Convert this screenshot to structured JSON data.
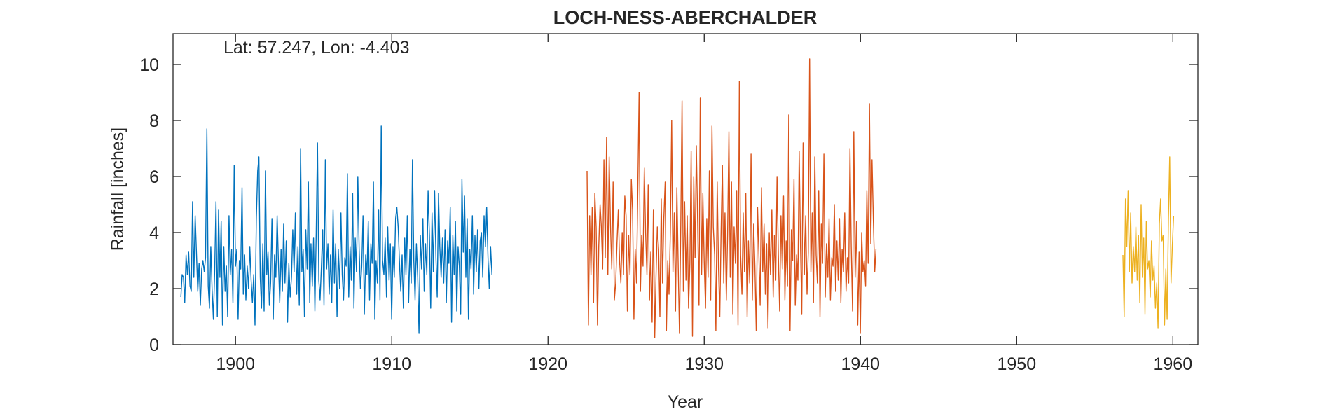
{
  "chart_data": {
    "type": "line",
    "title": "LOCH-NESS-ABERCHALDER",
    "annotation": "Lat: 57.247, Lon: -4.403",
    "xlabel": "Year",
    "ylabel": "Rainfall [inches]",
    "xlim": [
      1896,
      1961.6
    ],
    "ylim": [
      0,
      11.1
    ],
    "xticks": [
      1900,
      1910,
      1920,
      1930,
      1940,
      1950,
      1960
    ],
    "yticks": [
      0,
      2,
      4,
      6,
      8,
      10
    ],
    "grid": false,
    "series": [
      {
        "color": "#0072BD",
        "x_start": 1896.5,
        "x_step": 0.0833,
        "values": [
          1.7,
          2.5,
          2.4,
          1.5,
          3.2,
          2.5,
          3.3,
          2.1,
          1.9,
          5.1,
          2.4,
          4.6,
          3.3,
          1.9,
          2.9,
          1.4,
          2.7,
          3.0,
          2.6,
          3.1,
          7.7,
          2.1,
          1.3,
          3.5,
          2.0,
          0.9,
          2.7,
          5.1,
          1.0,
          4.8,
          2.4,
          4.4,
          0.7,
          3.5,
          1.9,
          2.8,
          1.0,
          4.6,
          2.5,
          3.4,
          1.5,
          6.4,
          2.8,
          3.4,
          0.9,
          3.0,
          2.7,
          5.6,
          1.8,
          3.2,
          1.6,
          2.8,
          2.0,
          3.5,
          2.3,
          1.5,
          2.5,
          0.7,
          4.5,
          6.2,
          6.7,
          2.4,
          1.3,
          3.6,
          1.2,
          6.2,
          2.5,
          3.3,
          1.4,
          2.2,
          4.5,
          0.9,
          3.2,
          2.4,
          4.6,
          2.9,
          1.5,
          3.4,
          1.9,
          4.3,
          2.2,
          3.7,
          0.8,
          2.9,
          1.7,
          2.4,
          4.1,
          2.6,
          4.7,
          1.8,
          3.5,
          1.4,
          7.0,
          2.6,
          3.4,
          1.0,
          4.1,
          2.7,
          5.8,
          1.5,
          3.6,
          2.1,
          3.8,
          1.2,
          4.0,
          7.2,
          2.3,
          1.6,
          2.8,
          4.1,
          1.4,
          6.6,
          2.7,
          3.6,
          1.8,
          3.2,
          1.5,
          4.8,
          2.2,
          3.6,
          1.0,
          3.4,
          2.0,
          4.7,
          2.5,
          1.6,
          3.1,
          2.8,
          6.1,
          1.7,
          3.5,
          2.3,
          5.4,
          1.3,
          3.8,
          2.6,
          6.0,
          3.4,
          2.0,
          2.8,
          4.6,
          1.1,
          3.2,
          2.5,
          4.4,
          1.6,
          3.6,
          2.9,
          5.8,
          0.9,
          3.0,
          2.2,
          4.8,
          1.6,
          7.8,
          3.0,
          2.5,
          3.8,
          1.7,
          4.2,
          2.3,
          3.6,
          0.9,
          3.5,
          2.4,
          4.5,
          4.9,
          4.2,
          2.9,
          1.9,
          3.2,
          1.3,
          3.8,
          2.5,
          4.6,
          1.5,
          3.4,
          2.2,
          6.6,
          3.0,
          1.6,
          3.6,
          2.4,
          0.4,
          3.9,
          2.7,
          4.5,
          1.9,
          3.6,
          2.5,
          5.5,
          3.9,
          1.3,
          4.7,
          2.6,
          5.5,
          3.1,
          1.7,
          5.4,
          3.5,
          2.4,
          3.8,
          2.2,
          4.1,
          1.5,
          3.7,
          2.9,
          4.9,
          0.8,
          3.9,
          2.5,
          4.4,
          1.2,
          3.5,
          2.8,
          1.1,
          5.9,
          3.3,
          5.3,
          2.4,
          4.5,
          0.9,
          3.4,
          2.7,
          4.6,
          1.8,
          3.9,
          2.6,
          4.1,
          2.0,
          3.7,
          4.0,
          2.4,
          4.6,
          3.5,
          4.9,
          3.1,
          2.0,
          3.5,
          2.5
        ],
        "x_start_note": "series 1"
      },
      {
        "color": "#D95319",
        "x_start": 1922.5,
        "x_step": 0.0833,
        "values": [
          6.2,
          0.7,
          4.6,
          2.5,
          4.9,
          1.5,
          5.4,
          4.2,
          0.7,
          3.5,
          5.0,
          4.2,
          2.7,
          6.6,
          3.1,
          7.4,
          2.5,
          6.7,
          4.3,
          2.7,
          5.8,
          1.6,
          2.2,
          3.6,
          4.8,
          3.0,
          2.2,
          4.0,
          2.5,
          5.3,
          4.6,
          1.2,
          3.9,
          2.5,
          5.9,
          4.8,
          0.9,
          3.4,
          2.2,
          5.6,
          9.0,
          1.9,
          3.9,
          2.8,
          6.3,
          4.0,
          2.5,
          5.7,
          1.6,
          3.3,
          0.8,
          4.8,
          0.25,
          2.5,
          4.2,
          3.4,
          1.0,
          5.2,
          2.2,
          4.5,
          5.8,
          0.5,
          3.0,
          1.8,
          4.0,
          8.0,
          2.6,
          4.7,
          1.2,
          5.6,
          3.0,
          0.4,
          4.3,
          8.7,
          1.9,
          5.1,
          2.3,
          4.6,
          1.3,
          2.9,
          6.9,
          0.3,
          6.0,
          3.1,
          7.1,
          4.3,
          1.4,
          8.8,
          2.5,
          5.4,
          3.0,
          1.3,
          4.5,
          2.4,
          6.2,
          1.6,
          7.8,
          4.2,
          3.2,
          0.5,
          5.8,
          2.8,
          1.0,
          4.0,
          6.4,
          2.2,
          4.7,
          1.6,
          3.9,
          7.6,
          2.4,
          5.8,
          1.1,
          4.2,
          2.9,
          5.5,
          0.7,
          9.4,
          3.2,
          1.8,
          4.7,
          2.6,
          5.4,
          1.0,
          3.7,
          2.2,
          6.8,
          1.6,
          4.3,
          2.8,
          0.5,
          4.9,
          3.3,
          1.4,
          5.6,
          2.6,
          4.3,
          1.8,
          3.6,
          0.6,
          4.0,
          2.5,
          4.8,
          1.7,
          3.9,
          2.3,
          6.0,
          3.2,
          1.2,
          4.6,
          2.7,
          5.3,
          1.6,
          3.7,
          2.1,
          8.2,
          0.5,
          4.1,
          3.0,
          5.9,
          1.4,
          3.2,
          2.3,
          6.9,
          3.5,
          1.1,
          7.2,
          2.5,
          4.6,
          1.8,
          3.3,
          10.2,
          2.6,
          4.7,
          1.5,
          6.7,
          3.2,
          2.2,
          5.5,
          1.0,
          4.3,
          2.9,
          6.8,
          1.7,
          3.6,
          2.4,
          4.5,
          1.6,
          3.1,
          2.8,
          5.0,
          1.9,
          3.7,
          2.3,
          4.5,
          1.5,
          3.4,
          2.6,
          4.7,
          1.9,
          3.1,
          2.2,
          7.0,
          3.5,
          1.2,
          7.6,
          2.4,
          4.4,
          0.7,
          3.3,
          0.4,
          4.0,
          2.6,
          3.0,
          2.1,
          5.5,
          2.9,
          8.6,
          3.6,
          6.6,
          4.4,
          2.6,
          3.4
        ],
        "x_start_note": "series 2"
      },
      {
        "color": "#EDB120",
        "x_start": 1956.8,
        "x_step": 0.0833,
        "values": [
          3.2,
          1.0,
          5.2,
          3.5,
          5.5,
          2.6,
          4.7,
          2.2,
          3.5,
          2.6,
          4.2,
          2.3,
          3.9,
          1.5,
          5.0,
          2.4,
          3.8,
          1.1,
          4.4,
          2.7,
          3.0,
          1.7,
          3.7,
          2.3,
          2.8,
          1.3,
          2.2,
          0.6,
          4.3,
          5.2,
          3.7,
          3.9,
          0.7,
          2.7,
          0.9,
          4.5,
          6.7,
          2.2,
          3.5,
          4.6
        ],
        "x_start_note": "series 3"
      }
    ]
  }
}
